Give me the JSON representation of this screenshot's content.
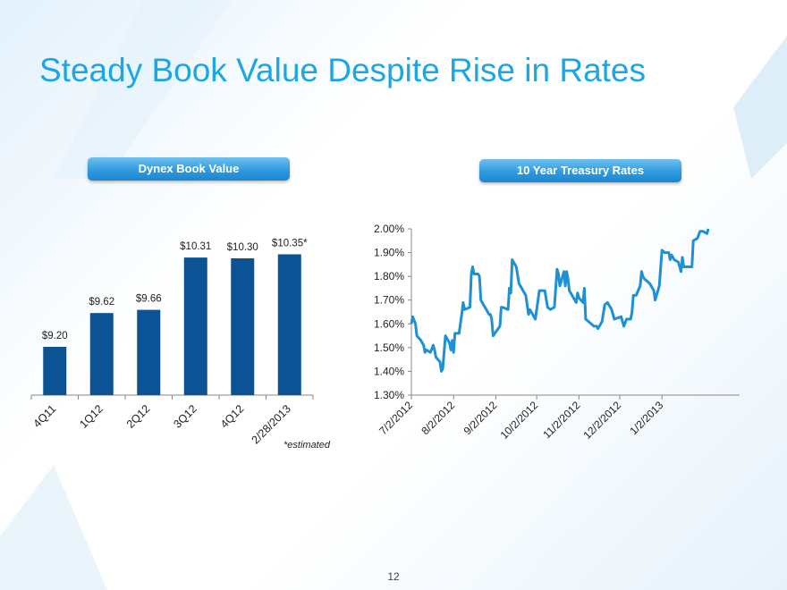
{
  "slide": {
    "title": "Steady Book Value Despite Rise in Rates",
    "page_number": "12",
    "accent_color": "#1aa7e3"
  },
  "left_panel": {
    "header": "Dynex Book Value",
    "footnote": "*estimated"
  },
  "right_panel": {
    "header": "10 Year Treasury Rates"
  },
  "chart_data": [
    {
      "type": "bar",
      "title": "Dynex Book Value",
      "categories": [
        "4Q11",
        "1Q12",
        "2Q12",
        "3Q12",
        "4Q12",
        "2/28/2013"
      ],
      "values": [
        9.2,
        9.62,
        9.66,
        10.31,
        10.3,
        10.35
      ],
      "data_labels": [
        "$9.20",
        "$9.62",
        "$9.66",
        "$10.31",
        "$10.30",
        "$10.35*"
      ],
      "ylim": [
        8.6,
        10.6
      ],
      "bar_color": "#0b5394",
      "grid": false,
      "legend": "none"
    },
    {
      "type": "line",
      "title": "10 Year Treasury Rates",
      "x_start": "2012-07-02",
      "x_end": "2013-02-28",
      "x_tick_labels": [
        "7/2/2012",
        "8/2/2012",
        "9/2/2012",
        "10/2/2012",
        "11/2/2012",
        "12/2/2012",
        "1/2/2013"
      ],
      "y_tick_labels": [
        "2.00%",
        "1.90%",
        "1.80%",
        "1.70%",
        "1.60%",
        "1.50%",
        "1.40%",
        "1.30%"
      ],
      "ylim": [
        1.3,
        2.0
      ],
      "line_color": "#1e90d4",
      "grid": false,
      "legend": "none",
      "series": [
        {
          "points": [
            [
              "2012-07-02",
              1.6
            ],
            [
              "2012-07-03",
              1.63
            ],
            [
              "2012-07-05",
              1.6
            ],
            [
              "2012-07-06",
              1.55
            ],
            [
              "2012-07-09",
              1.53
            ],
            [
              "2012-07-11",
              1.51
            ],
            [
              "2012-07-12",
              1.48
            ],
            [
              "2012-07-13",
              1.49
            ],
            [
              "2012-07-16",
              1.48
            ],
            [
              "2012-07-18",
              1.51
            ],
            [
              "2012-07-19",
              1.49
            ],
            [
              "2012-07-20",
              1.46
            ],
            [
              "2012-07-23",
              1.44
            ],
            [
              "2012-07-24",
              1.4
            ],
            [
              "2012-07-25",
              1.41
            ],
            [
              "2012-07-27",
              1.55
            ],
            [
              "2012-07-30",
              1.52
            ],
            [
              "2012-07-31",
              1.49
            ],
            [
              "2012-08-01",
              1.53
            ],
            [
              "2012-08-02",
              1.48
            ],
            [
              "2012-08-03",
              1.56
            ],
            [
              "2012-08-06",
              1.56
            ],
            [
              "2012-08-08",
              1.64
            ],
            [
              "2012-08-09",
              1.69
            ],
            [
              "2012-08-10",
              1.66
            ],
            [
              "2012-08-14",
              1.67
            ],
            [
              "2012-08-15",
              1.81
            ],
            [
              "2012-08-16",
              1.84
            ],
            [
              "2012-08-17",
              1.81
            ],
            [
              "2012-08-20",
              1.81
            ],
            [
              "2012-08-21",
              1.8
            ],
            [
              "2012-08-22",
              1.7
            ],
            [
              "2012-08-24",
              1.68
            ],
            [
              "2012-08-27",
              1.65
            ],
            [
              "2012-08-28",
              1.64
            ],
            [
              "2012-08-29",
              1.64
            ],
            [
              "2012-08-30",
              1.62
            ],
            [
              "2012-08-31",
              1.55
            ],
            [
              "2012-09-05",
              1.59
            ],
            [
              "2012-09-06",
              1.67
            ],
            [
              "2012-09-07",
              1.67
            ],
            [
              "2012-09-11",
              1.66
            ],
            [
              "2012-09-12",
              1.75
            ],
            [
              "2012-09-13",
              1.73
            ],
            [
              "2012-09-14",
              1.87
            ],
            [
              "2012-09-17",
              1.84
            ],
            [
              "2012-09-19",
              1.77
            ],
            [
              "2012-09-21",
              1.75
            ],
            [
              "2012-09-24",
              1.72
            ],
            [
              "2012-09-26",
              1.64
            ],
            [
              "2012-09-27",
              1.66
            ],
            [
              "2012-10-01",
              1.62
            ],
            [
              "2012-10-04",
              1.74
            ],
            [
              "2012-10-08",
              1.74
            ],
            [
              "2012-10-10",
              1.67
            ],
            [
              "2012-10-12",
              1.66
            ],
            [
              "2012-10-15",
              1.67
            ],
            [
              "2012-10-17",
              1.83
            ],
            [
              "2012-10-18",
              1.81
            ],
            [
              "2012-10-19",
              1.76
            ],
            [
              "2012-10-22",
              1.82
            ],
            [
              "2012-10-23",
              1.76
            ],
            [
              "2012-10-24",
              1.82
            ],
            [
              "2012-10-25",
              1.79
            ],
            [
              "2012-10-26",
              1.74
            ],
            [
              "2012-10-31",
              1.69
            ],
            [
              "2012-11-01",
              1.73
            ],
            [
              "2012-11-02",
              1.71
            ],
            [
              "2012-11-05",
              1.69
            ],
            [
              "2012-11-06",
              1.75
            ],
            [
              "2012-11-07",
              1.62
            ],
            [
              "2012-11-09",
              1.61
            ],
            [
              "2012-11-13",
              1.59
            ],
            [
              "2012-11-15",
              1.59
            ],
            [
              "2012-11-16",
              1.58
            ],
            [
              "2012-11-19",
              1.61
            ],
            [
              "2012-11-21",
              1.68
            ],
            [
              "2012-11-23",
              1.69
            ],
            [
              "2012-11-26",
              1.66
            ],
            [
              "2012-11-28",
              1.62
            ],
            [
              "2012-12-03",
              1.63
            ],
            [
              "2012-12-05",
              1.59
            ],
            [
              "2012-12-07",
              1.62
            ],
            [
              "2012-12-10",
              1.62
            ],
            [
              "2012-12-11",
              1.65
            ],
            [
              "2012-12-12",
              1.72
            ],
            [
              "2012-12-14",
              1.72
            ],
            [
              "2012-12-17",
              1.76
            ],
            [
              "2012-12-18",
              1.82
            ],
            [
              "2012-12-19",
              1.8
            ],
            [
              "2012-12-20",
              1.79
            ],
            [
              "2012-12-24",
              1.77
            ],
            [
              "2012-12-27",
              1.74
            ],
            [
              "2012-12-28",
              1.7
            ],
            [
              "2012-12-31",
              1.76
            ],
            [
              "2013-01-02",
              1.91
            ],
            [
              "2013-01-04",
              1.9
            ],
            [
              "2013-01-07",
              1.9
            ],
            [
              "2013-01-08",
              1.87
            ],
            [
              "2013-01-09",
              1.89
            ],
            [
              "2013-01-11",
              1.87
            ],
            [
              "2013-01-14",
              1.86
            ],
            [
              "2013-01-16",
              1.82
            ],
            [
              "2013-01-17",
              1.88
            ],
            [
              "2013-01-18",
              1.84
            ],
            [
              "2013-01-22",
              1.84
            ],
            [
              "2013-01-24",
              1.84
            ],
            [
              "2013-01-25",
              1.95
            ],
            [
              "2013-01-28",
              1.96
            ],
            [
              "2013-01-30",
              1.99
            ],
            [
              "2013-02-01",
              1.99
            ],
            [
              "2013-02-04",
              1.98
            ],
            [
              "2013-02-05",
              2.0
            ]
          ]
        }
      ]
    }
  ]
}
